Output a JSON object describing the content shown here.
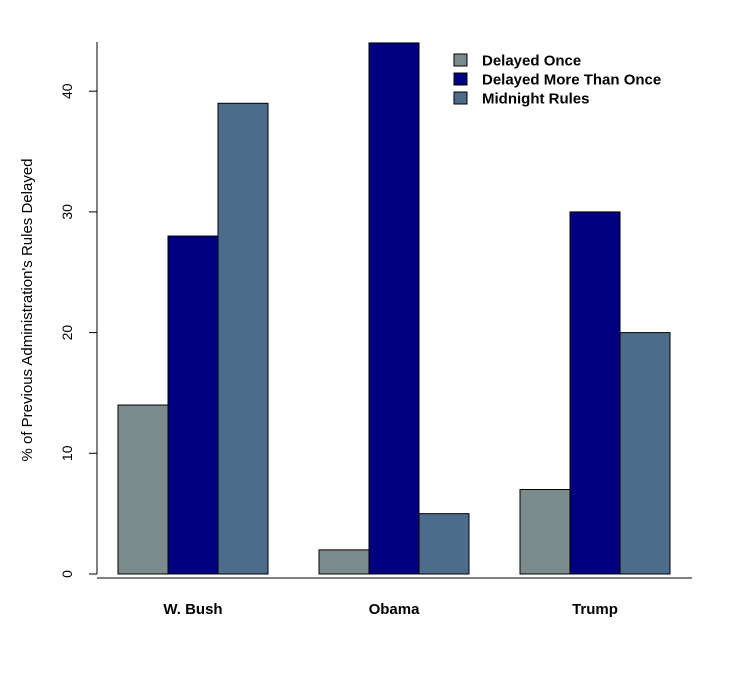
{
  "chart_data": {
    "type": "bar",
    "ylabel": "% of Previous Administration's Rules Delayed",
    "xlabel": "",
    "categories": [
      "W. Bush",
      "Obama",
      "Trump"
    ],
    "series": [
      {
        "name": "Delayed Once",
        "color": "#7b8b8b",
        "values": [
          14,
          2,
          7
        ]
      },
      {
        "name": "Delayed More Than Once",
        "color": "#000080",
        "values": [
          28,
          44,
          30
        ]
      },
      {
        "name": "Midnight Rules",
        "color": "#4b6d8b",
        "values": [
          39,
          5,
          20
        ]
      }
    ],
    "yticks": [
      "0",
      "10",
      "20",
      "30",
      "40"
    ],
    "ylim": [
      0,
      44
    ],
    "grid": false,
    "legend": "top-right"
  }
}
